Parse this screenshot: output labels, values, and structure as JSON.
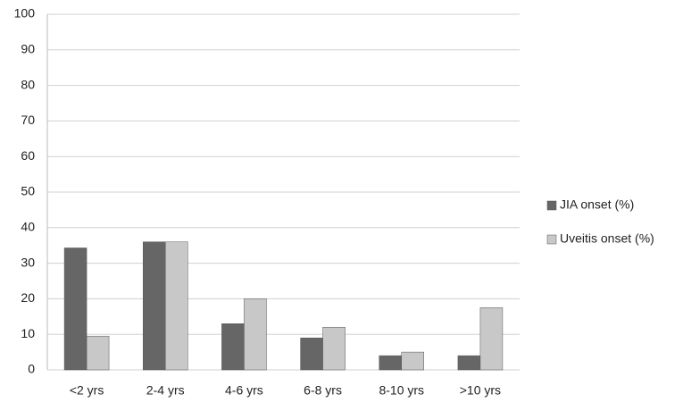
{
  "chart_data": {
    "type": "bar",
    "categories": [
      "<2 yrs",
      "2-4 yrs",
      "4-6 yrs",
      "6-8 yrs",
      "8-10 yrs",
      ">10 yrs"
    ],
    "series": [
      {
        "name": "JIA onset (%)",
        "color": "#666666",
        "values": [
          34.3,
          36,
          13,
          9,
          4,
          4
        ]
      },
      {
        "name": "Uveitis onset (%)",
        "color": "#c8c8c8",
        "values": [
          9.5,
          36,
          20,
          12,
          5,
          17.5
        ]
      }
    ],
    "ylim": [
      0,
      100
    ],
    "yticks": [
      0,
      10,
      20,
      30,
      40,
      50,
      60,
      70,
      80,
      90,
      100
    ],
    "grid": true,
    "legend": "right"
  }
}
